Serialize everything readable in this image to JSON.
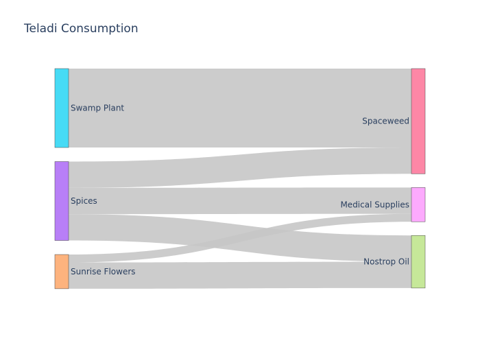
{
  "chart_data": {
    "type": "sankey",
    "title": "Teladi Consumption",
    "sources": [
      {
        "id": "swamp",
        "label": "Swamp Plant",
        "color": "#47dbf5"
      },
      {
        "id": "spices",
        "label": "Spices",
        "color": "#b87ff7"
      },
      {
        "id": "sunrise",
        "label": "Sunrise Flowers",
        "color": "#fdb37e"
      }
    ],
    "targets": [
      {
        "id": "spaceweed",
        "label": "Spaceweed",
        "color": "#fd87a6"
      },
      {
        "id": "medical",
        "label": "Medical Supplies",
        "color": "#fcaafd"
      },
      {
        "id": "nostrop",
        "label": "Nostrop Oil",
        "color": "#c6e899"
      }
    ],
    "links": [
      {
        "source": "swamp",
        "target": "spaceweed",
        "value": 6
      },
      {
        "source": "spices",
        "target": "spaceweed",
        "value": 2
      },
      {
        "source": "spices",
        "target": "medical",
        "value": 2
      },
      {
        "source": "spices",
        "target": "nostrop",
        "value": 2
      },
      {
        "source": "sunrise",
        "target": "medical",
        "value": 0.6
      },
      {
        "source": "sunrise",
        "target": "nostrop",
        "value": 2
      },
      {
        "source": "sunrise",
        "target": "spaceweed",
        "value": 0
      }
    ],
    "link_color": "#c7c7c7",
    "link_opacity": 0.9
  }
}
